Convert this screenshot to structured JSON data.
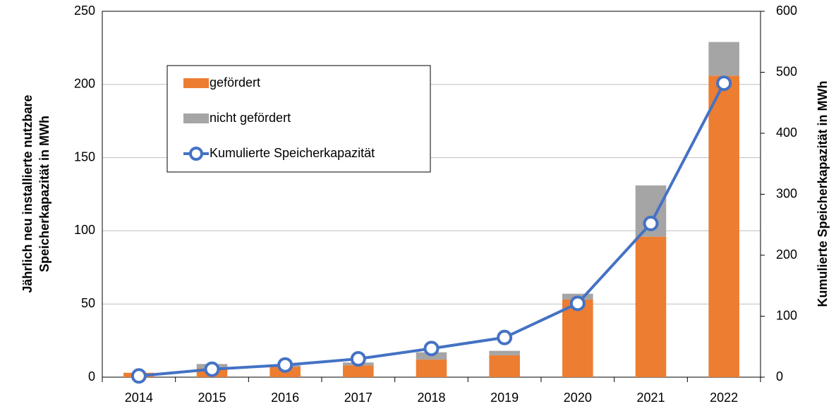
{
  "chart_data": {
    "type": "bar",
    "stacked": true,
    "ylabel": [
      "Jährlich neu installierte nutzbare",
      "Speicherkapazität in MWh"
    ],
    "y2label": "Kumulierte Speicherkapazität in MWh",
    "categories": [
      "2014",
      "2015",
      "2016",
      "2017",
      "2018",
      "2019",
      "2020",
      "2021",
      "2022"
    ],
    "series": [
      {
        "name": "gefördert",
        "color": "#ed7d31",
        "values": [
          3,
          6,
          7,
          8,
          12,
          15,
          53,
          96,
          206
        ]
      },
      {
        "name": "nicht gefördert",
        "color": "#a5a5a5",
        "values": [
          0,
          3,
          1,
          2,
          5,
          3,
          4,
          35,
          23
        ]
      },
      {
        "name": "Kumulierte Speicherkapazität",
        "color": "#4472c4",
        "type": "line",
        "axis": "y2",
        "values": [
          2,
          13,
          20,
          30,
          47,
          65,
          121,
          252,
          482
        ]
      }
    ],
    "ylim": [
      0,
      250
    ],
    "yticks": [
      0,
      50,
      100,
      150,
      200,
      250
    ],
    "y2lim": [
      0,
      600
    ],
    "y2ticks": [
      0,
      100,
      200,
      300,
      400,
      500,
      600
    ],
    "grid": true
  }
}
